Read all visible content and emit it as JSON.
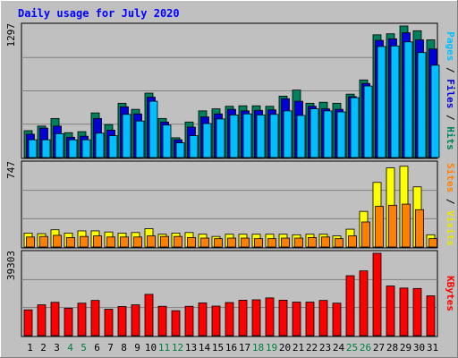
{
  "chart_data": [
    {
      "type": "bar",
      "title": "Daily usage for July 2020",
      "categories": [
        "1",
        "2",
        "3",
        "4",
        "5",
        "6",
        "7",
        "8",
        "9",
        "10",
        "11",
        "12",
        "13",
        "14",
        "15",
        "16",
        "17",
        "18",
        "19",
        "20",
        "21",
        "22",
        "23",
        "24",
        "25",
        "26",
        "27",
        "28",
        "29",
        "30",
        "31"
      ],
      "weekend_days": [
        "4",
        "5",
        "11",
        "12",
        "18",
        "19",
        "25",
        "26"
      ],
      "ymax_label": "1297",
      "ylim": [
        0,
        1297
      ],
      "grid": true,
      "series": [
        {
          "name": "Hits",
          "color": "#00805c",
          "values": [
            265,
            310,
            385,
            245,
            255,
            440,
            325,
            535,
            475,
            635,
            385,
            195,
            350,
            460,
            480,
            505,
            510,
            510,
            505,
            605,
            665,
            535,
            545,
            535,
            625,
            765,
            1210,
            1220,
            1297,
            1250,
            1160
          ]
        },
        {
          "name": "Files",
          "color": "#0000d8",
          "values": [
            230,
            290,
            310,
            200,
            210,
            385,
            270,
            500,
            430,
            595,
            350,
            175,
            300,
            400,
            430,
            475,
            460,
            465,
            470,
            580,
            555,
            505,
            480,
            475,
            600,
            730,
            1155,
            1170,
            1230,
            1160,
            1070
          ]
        },
        {
          "name": "Pages",
          "color": "#00bfff",
          "values": [
            175,
            175,
            235,
            175,
            175,
            240,
            215,
            425,
            360,
            555,
            320,
            145,
            215,
            335,
            380,
            420,
            430,
            420,
            425,
            460,
            415,
            480,
            460,
            450,
            590,
            705,
            1095,
            1100,
            1140,
            1035,
            910
          ]
        }
      ]
    },
    {
      "type": "bar",
      "categories": [
        "1",
        "2",
        "3",
        "4",
        "5",
        "6",
        "7",
        "8",
        "9",
        "10",
        "11",
        "12",
        "13",
        "14",
        "15",
        "16",
        "17",
        "18",
        "19",
        "20",
        "21",
        "22",
        "23",
        "24",
        "25",
        "26",
        "27",
        "28",
        "29",
        "30",
        "31"
      ],
      "ymax_label": "747",
      "ylim": [
        0,
        747
      ],
      "grid": true,
      "series": [
        {
          "name": "Visits",
          "color": "#ffff00",
          "values": [
            125,
            120,
            155,
            125,
            145,
            145,
            135,
            125,
            130,
            165,
            115,
            125,
            130,
            115,
            95,
            115,
            115,
            115,
            115,
            115,
            110,
            115,
            115,
            100,
            160,
            320,
            580,
            710,
            725,
            540,
            110
          ]
        },
        {
          "name": "Sites",
          "color": "#ff8000",
          "values": [
            90,
            95,
            105,
            85,
            95,
            100,
            90,
            90,
            90,
            100,
            95,
            95,
            85,
            80,
            75,
            80,
            80,
            75,
            75,
            80,
            80,
            85,
            90,
            75,
            100,
            225,
            365,
            375,
            385,
            335,
            75
          ]
        }
      ]
    },
    {
      "type": "bar",
      "categories": [
        "1",
        "2",
        "3",
        "4",
        "5",
        "6",
        "7",
        "8",
        "9",
        "10",
        "11",
        "12",
        "13",
        "14",
        "15",
        "16",
        "17",
        "18",
        "19",
        "20",
        "21",
        "22",
        "23",
        "24",
        "25",
        "26",
        "27",
        "28",
        "29",
        "30",
        "31"
      ],
      "ymax_label": "39303",
      "ylim": [
        0,
        39303
      ],
      "grid": true,
      "series": [
        {
          "name": "KBytes",
          "color": "#ff0000",
          "values": [
            12300,
            14700,
            15900,
            13100,
            15500,
            16800,
            12600,
            13900,
            14700,
            19700,
            14000,
            11900,
            14000,
            15600,
            14100,
            15800,
            16900,
            17100,
            18000,
            16900,
            16000,
            16000,
            16800,
            15500,
            28600,
            30900,
            39303,
            23700,
            22700,
            22500,
            19000
          ]
        }
      ]
    }
  ],
  "legend_sep": " / "
}
